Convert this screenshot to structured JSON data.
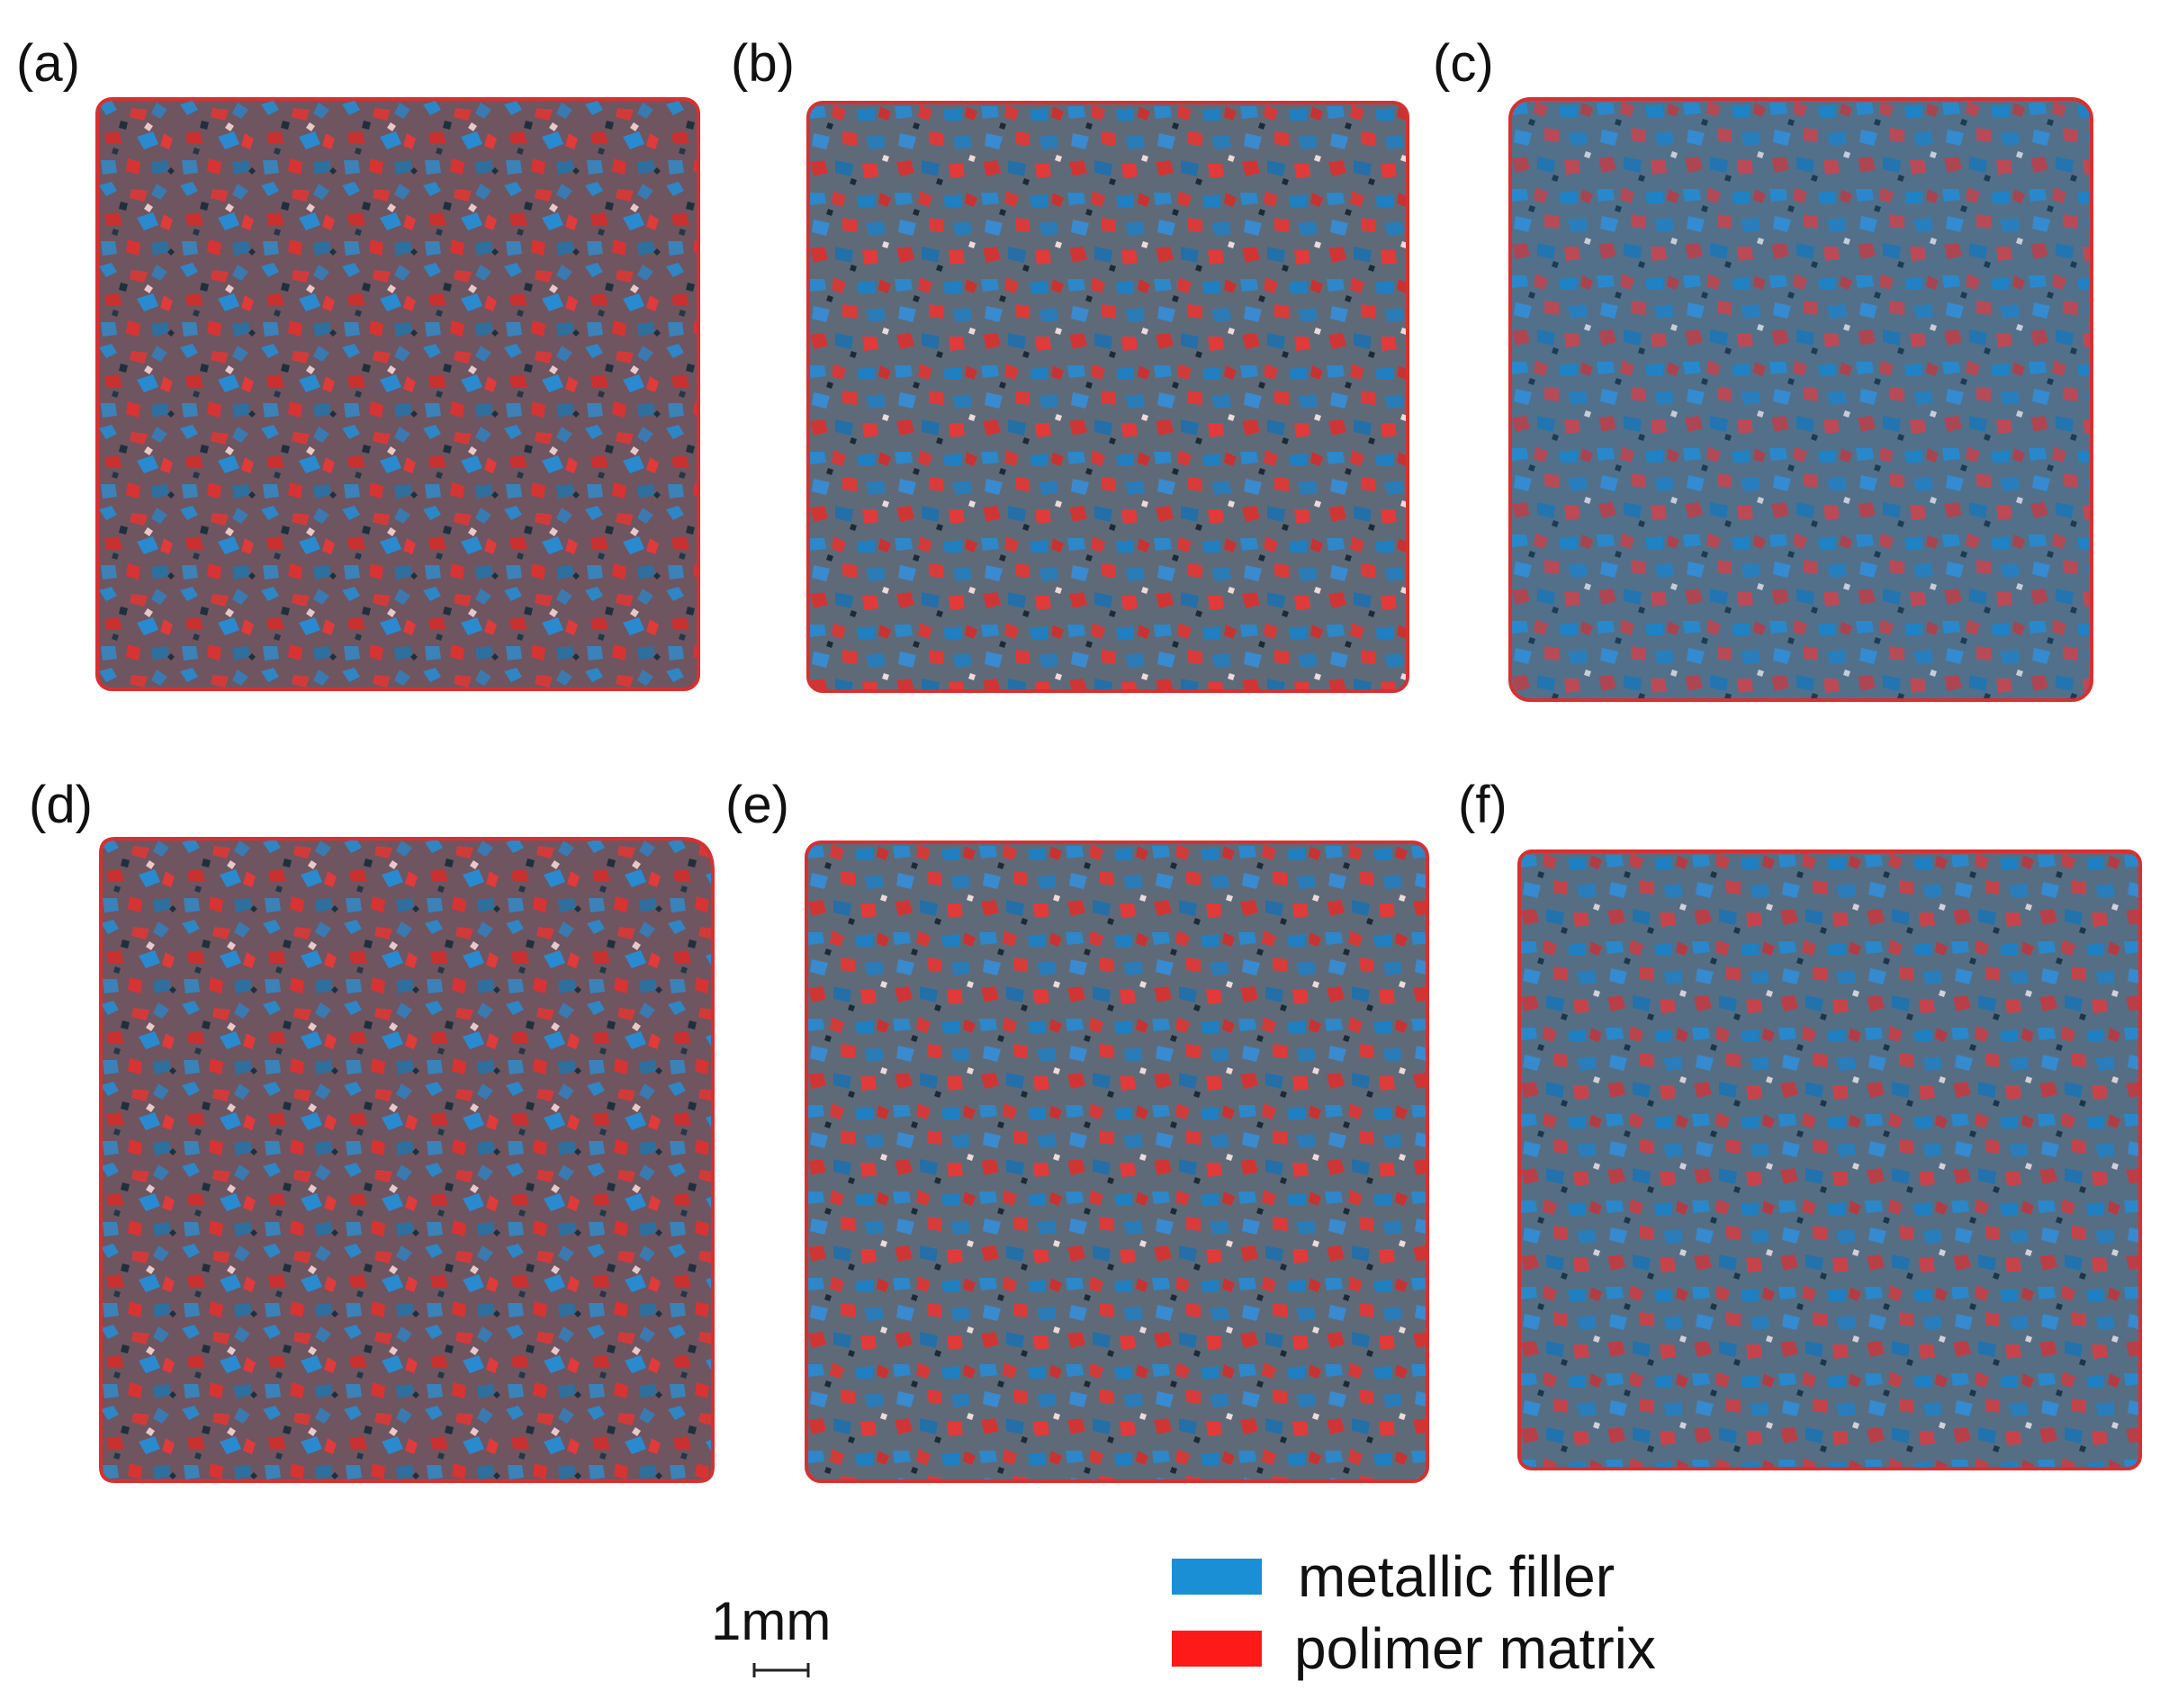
{
  "figure": {
    "panels": [
      {
        "label": "(a)"
      },
      {
        "label": "(b)"
      },
      {
        "label": "(c)"
      },
      {
        "label": "(d)"
      },
      {
        "label": "(e)"
      },
      {
        "label": "(f)"
      }
    ],
    "scale_bar": {
      "text": "1mm"
    },
    "legend": [
      {
        "label": "metallic filler",
        "color": "#1b8fd6"
      },
      {
        "label": "polimer matrix",
        "color": "#ff1a1a"
      }
    ]
  }
}
